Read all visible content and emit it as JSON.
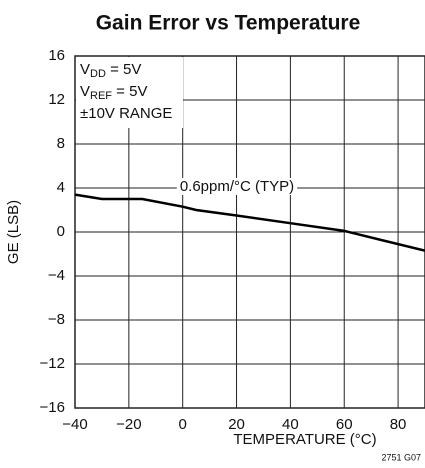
{
  "chart_data": {
    "type": "line",
    "title": "Gain Error vs Temperature",
    "x_label": "TEMPERATURE (°C)",
    "y_label": "GE (LSB)",
    "conditions": [
      {
        "main": "V",
        "sub": "DD",
        "rest": " = 5V"
      },
      {
        "main": "V",
        "sub": "REF",
        "rest": " = 5V"
      },
      {
        "main": "±10V RANGE"
      }
    ],
    "annotation": "0.6ppm/°C (TYP)",
    "figure_id": "2751 G07",
    "x": [
      -40,
      -30,
      -15,
      0,
      5,
      20,
      40,
      60,
      65,
      90
    ],
    "series": [
      {
        "name": "GE",
        "color": "#000000",
        "values": [
          3.4,
          3.0,
          3.0,
          2.3,
          2.0,
          1.5,
          0.8,
          0.1,
          -0.2,
          -1.7
        ]
      }
    ],
    "xlim": [
      -40,
      90
    ],
    "xticks": [
      {
        "value": -40,
        "label": "−40"
      },
      {
        "value": -20,
        "label": "−20"
      },
      0,
      20,
      40,
      60,
      80
    ],
    "ylim": [
      -16,
      16
    ],
    "yticks": [
      {
        "value": -16,
        "label": "−16"
      },
      {
        "value": -12,
        "label": "−12"
      },
      {
        "value": -8,
        "label": "−8"
      },
      {
        "value": -4,
        "label": "−4"
      },
      0,
      4,
      8,
      12,
      16
    ],
    "grid": true
  }
}
